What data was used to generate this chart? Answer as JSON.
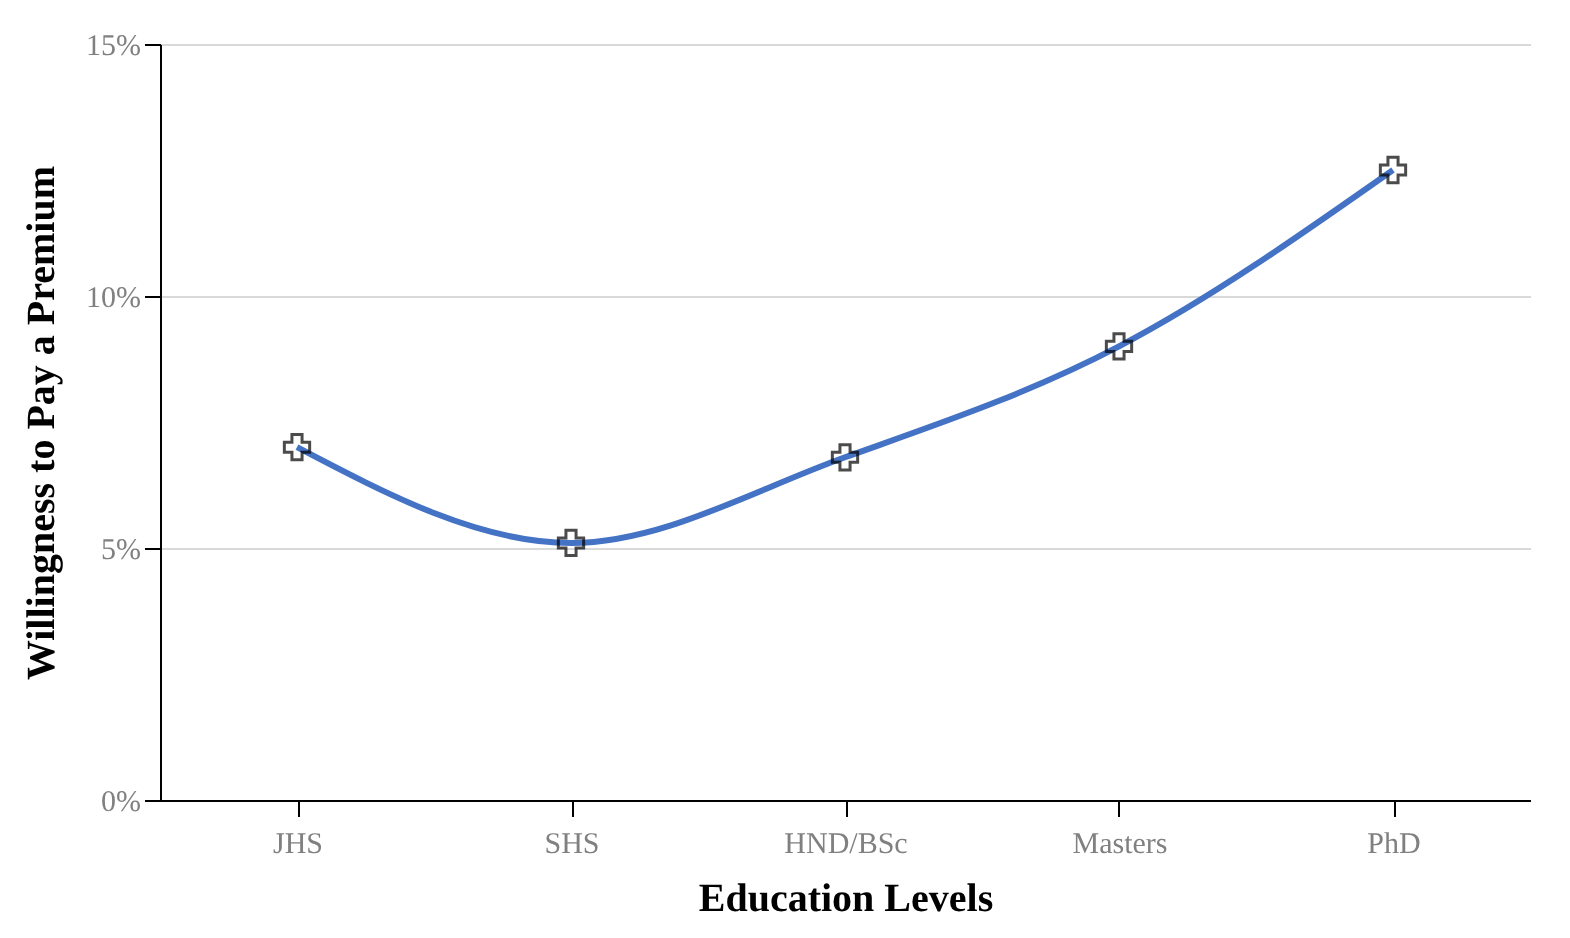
{
  "chart_data": {
    "type": "line",
    "xlabel": "Education Levels",
    "ylabel": "Willingness to Pay a Premium",
    "categories": [
      "JHS",
      "SHS",
      "HND/BSc",
      "Masters",
      "PhD"
    ],
    "series": [
      {
        "color": "#4472c4",
        "values": [
          7.0,
          5.1,
          6.8,
          9.0,
          12.5
        ]
      }
    ],
    "ylim": [
      0,
      15
    ],
    "yticks": [
      {
        "value": 0,
        "label": "0%"
      },
      {
        "value": 5,
        "label": "5%"
      },
      {
        "value": 10,
        "label": "10%"
      },
      {
        "value": 15,
        "label": "15%"
      }
    ],
    "grid": "y",
    "marker": "cross",
    "line_style": "solid",
    "legend": false
  }
}
